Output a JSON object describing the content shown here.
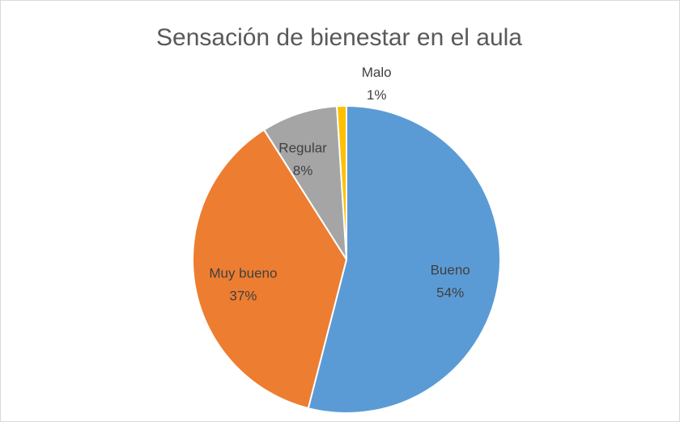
{
  "chart_data": {
    "type": "pie",
    "title": "Sensación de bienestar en el aula",
    "categories": [
      "Bueno",
      "Muy bueno",
      "Regular",
      "Malo"
    ],
    "values": [
      54,
      37,
      8,
      1
    ],
    "value_labels": [
      "54%",
      "37%",
      "8%",
      "1%"
    ],
    "colors": [
      "#5b9bd5",
      "#ed7d31",
      "#a5a5a5",
      "#ffc000"
    ]
  }
}
